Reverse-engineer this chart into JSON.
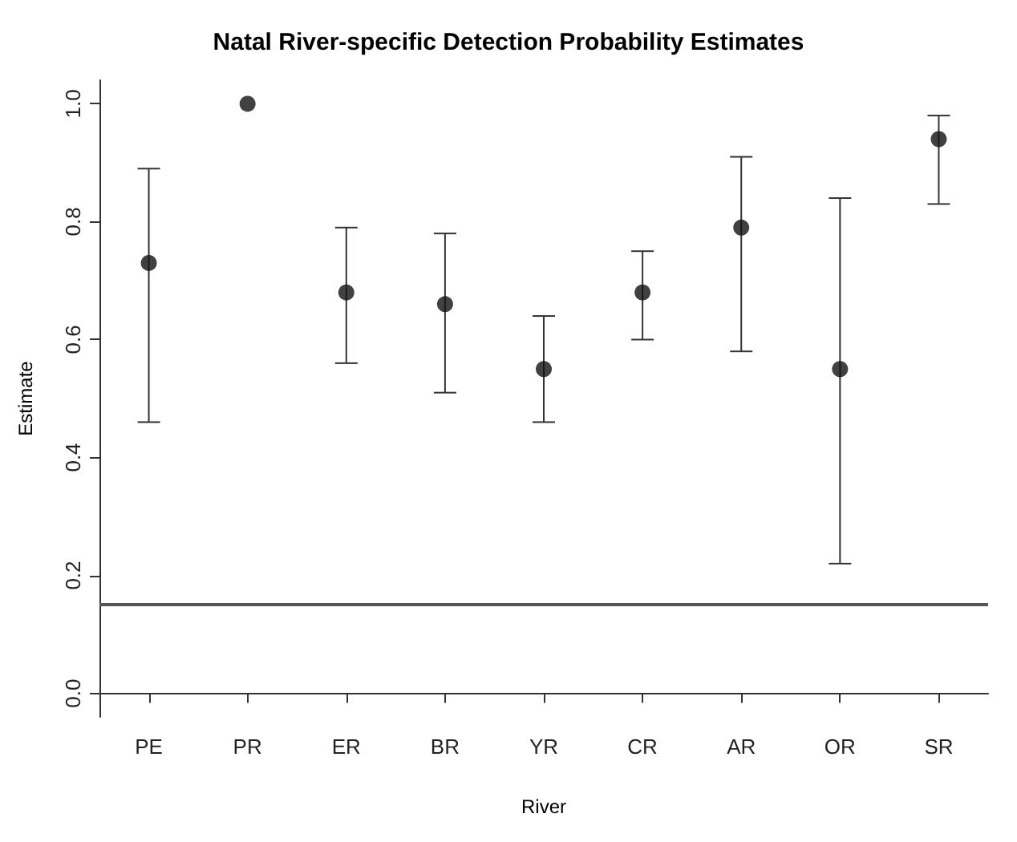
{
  "chart_data": {
    "type": "scatter",
    "title": "Natal River-specific Detection Probability Estimates",
    "xlabel": "River",
    "ylabel": "Estimate",
    "categories": [
      "PE",
      "PR",
      "ER",
      "BR",
      "YR",
      "CR",
      "AR",
      "OR",
      "SR"
    ],
    "values": [
      0.73,
      1.0,
      0.68,
      0.66,
      0.55,
      0.68,
      0.79,
      0.55,
      0.94
    ],
    "errors": [
      [
        0.46,
        0.89
      ],
      null,
      [
        0.56,
        0.79
      ],
      [
        0.51,
        0.78
      ],
      [
        0.46,
        0.64
      ],
      [
        0.6,
        0.75
      ],
      [
        0.58,
        0.91
      ],
      [
        0.22,
        0.84
      ],
      [
        0.83,
        0.98
      ]
    ],
    "color": "#111111",
    "marker": "circle",
    "ylim": [
      -0.04,
      1.04
    ],
    "yticks": [
      {
        "value": 0,
        "label": "0.0"
      },
      0.2,
      0.4,
      0.6,
      0.8,
      {
        "value": 1,
        "label": "1.0"
      }
    ],
    "ref_lines": [
      {
        "axis": "y",
        "value": 0.15,
        "color": "#555555",
        "line_style": "solid"
      }
    ]
  }
}
